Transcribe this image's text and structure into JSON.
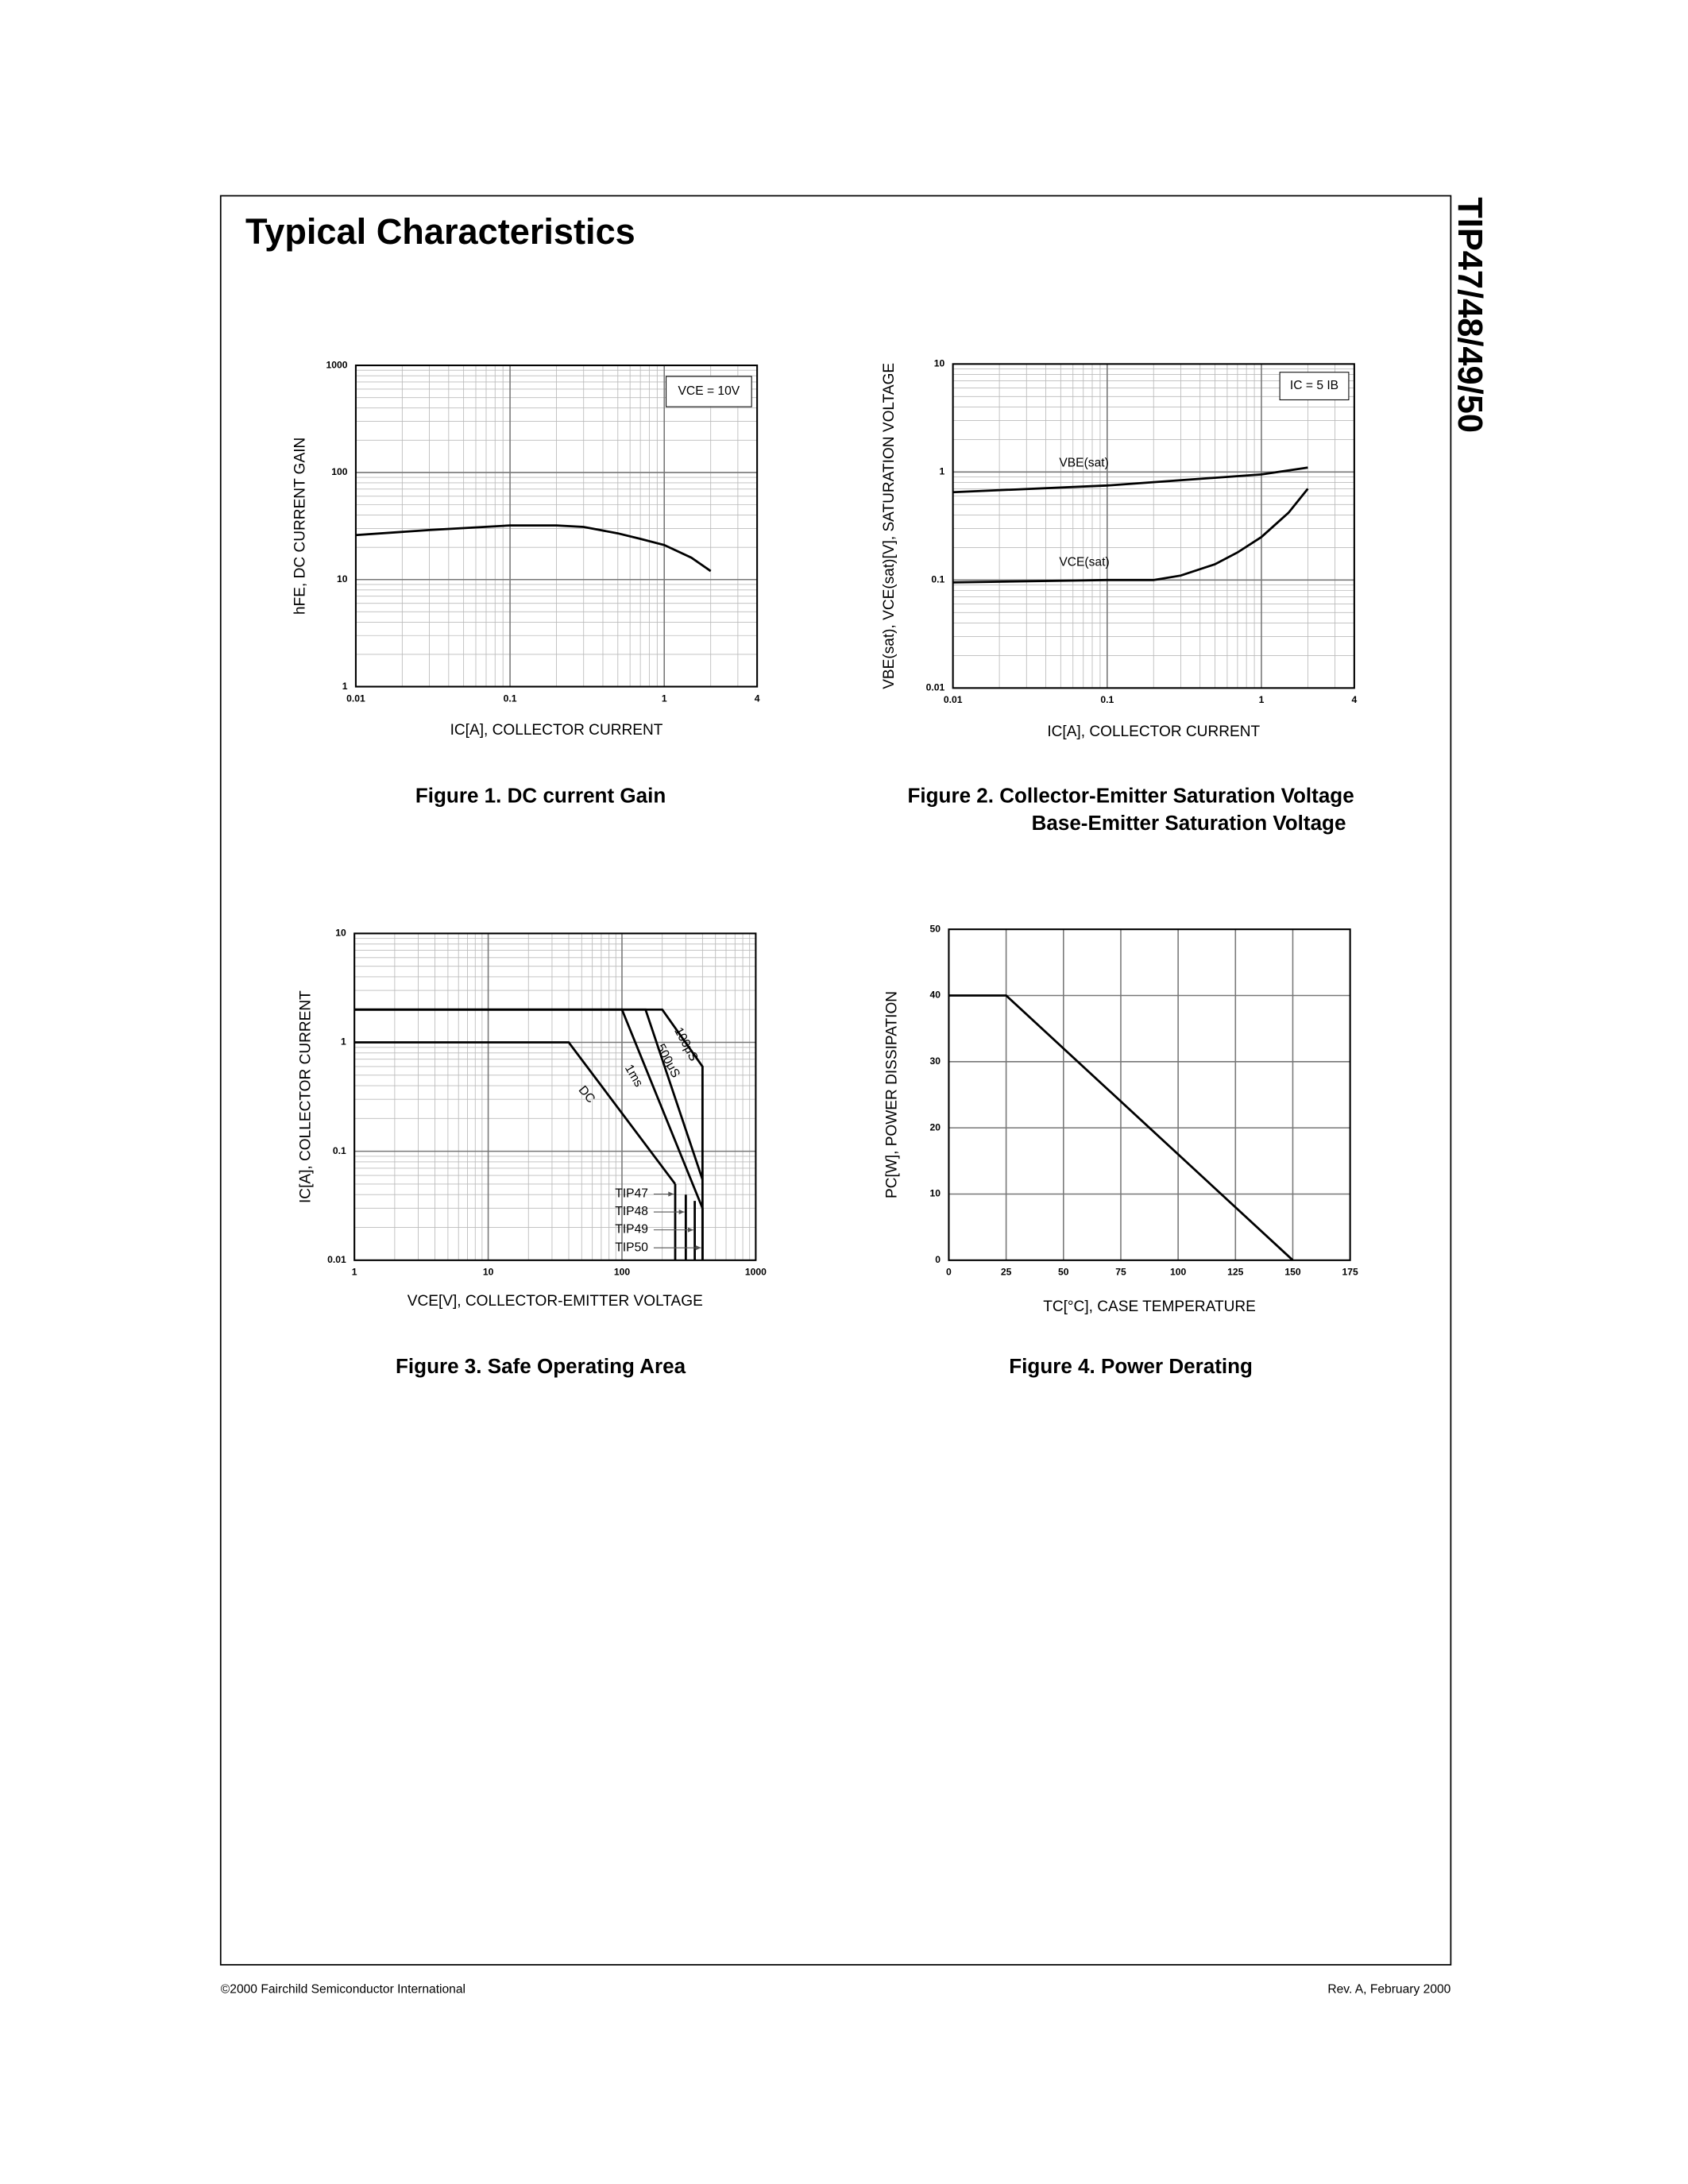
{
  "header": {
    "title": "Typical Characteristics",
    "side_title": "TIP47/48/49/50"
  },
  "footer": {
    "left": "©2000 Fairchild Semiconductor International",
    "right": "Rev. A, February 2000"
  },
  "chart_data": [
    {
      "type": "line",
      "caption": [
        "Figure 1. DC current Gain"
      ],
      "xlabel": "IC[A], COLLECTOR CURRENT",
      "ylabel": "hFE, DC CURRENT GAIN",
      "annotation": "VCE = 10V",
      "xscale": "log",
      "yscale": "log",
      "grid": true,
      "xlim": [
        0.01,
        4
      ],
      "xticks": [
        0.01,
        0.1,
        1,
        4
      ],
      "ylim": [
        1,
        1000
      ],
      "yticks": [
        1,
        10,
        100,
        1000
      ],
      "series": [
        {
          "color": "#000000",
          "x": [
            0.01,
            0.03,
            0.1,
            0.2,
            0.3,
            0.5,
            0.7,
            1,
            1.5,
            2
          ],
          "values": [
            26,
            29,
            32,
            32,
            31,
            27,
            24,
            21,
            16,
            12
          ]
        }
      ]
    },
    {
      "type": "line",
      "caption": [
        "Figure 2. Collector-Emitter Saturation Voltage",
        "Base-Emitter Saturation Voltage"
      ],
      "xlabel": "IC[A], COLLECTOR CURRENT",
      "ylabel": "VBE(sat), VCE(sat)[V], SATURATION VOLTAGE",
      "annotation": "IC = 5 IB",
      "xscale": "log",
      "yscale": "log",
      "grid": true,
      "xlim": [
        0.01,
        4
      ],
      "xticks": [
        0.01,
        0.1,
        1,
        4
      ],
      "ylim": [
        0.01,
        10
      ],
      "yticks": [
        0.01,
        0.1,
        1,
        10
      ],
      "series": [
        {
          "name": "VBE(sat)",
          "color": "#000000",
          "x": [
            0.01,
            0.1,
            1,
            2
          ],
          "values": [
            0.65,
            0.75,
            0.95,
            1.1
          ]
        },
        {
          "name": "VCE(sat)",
          "color": "#000000",
          "x": [
            0.01,
            0.1,
            0.2,
            0.3,
            0.5,
            0.7,
            1,
            1.5,
            2
          ],
          "values": [
            0.095,
            0.1,
            0.1,
            0.11,
            0.14,
            0.18,
            0.25,
            0.42,
            0.7
          ]
        }
      ]
    },
    {
      "type": "line",
      "caption": [
        "Figure 3. Safe Operating Area"
      ],
      "xlabel": "VCE[V], COLLECTOR-EMITTER VOLTAGE",
      "ylabel": "IC[A], COLLECTOR CURRENT",
      "xscale": "log",
      "yscale": "log",
      "grid": true,
      "xlim": [
        1,
        1000
      ],
      "xticks": [
        1,
        10,
        100,
        1000
      ],
      "ylim": [
        0.01,
        10
      ],
      "yticks": [
        0.01,
        0.1,
        1,
        10
      ],
      "series": [
        {
          "name": "100μS",
          "color": "#000000",
          "x": [
            1,
            200,
            400,
            400
          ],
          "values": [
            2,
            2,
            0.6,
            0.01
          ]
        },
        {
          "name": "500μS",
          "color": "#000000",
          "x": [
            1,
            150,
            400
          ],
          "values": [
            2,
            2,
            0.055
          ]
        },
        {
          "name": "1ms",
          "color": "#000000",
          "x": [
            1,
            100,
            400
          ],
          "values": [
            2,
            2,
            0.03
          ]
        },
        {
          "name": "DC",
          "color": "#000000",
          "x": [
            1,
            40,
            250
          ],
          "values": [
            1,
            1,
            0.05
          ]
        },
        {
          "name": "TIP47",
          "color": "#000000",
          "x": [
            250,
            250
          ],
          "values": [
            0.05,
            0.01
          ]
        },
        {
          "name": "TIP48",
          "color": "#000000",
          "x": [
            300,
            300
          ],
          "values": [
            0.04,
            0.01
          ]
        },
        {
          "name": "TIP49",
          "color": "#000000",
          "x": [
            350,
            350
          ],
          "values": [
            0.035,
            0.01
          ]
        },
        {
          "name": "TIP50",
          "color": "#000000",
          "x": [
            400,
            400
          ],
          "values": [
            0.03,
            0.01
          ]
        }
      ]
    },
    {
      "type": "line",
      "caption": [
        "Figure 4. Power Derating"
      ],
      "xlabel": "TC[°C], CASE TEMPERATURE",
      "ylabel": "PC[W], POWER DISSIPATION",
      "xscale": "linear",
      "yscale": "linear",
      "grid": true,
      "xlim": [
        0,
        175
      ],
      "xticks": [
        0,
        25,
        50,
        75,
        100,
        125,
        150,
        175
      ],
      "ylim": [
        0,
        50
      ],
      "yticks": [
        0,
        10,
        20,
        30,
        40,
        50
      ],
      "series": [
        {
          "color": "#000000",
          "x": [
            0,
            25,
            150
          ],
          "values": [
            40,
            40,
            0
          ]
        }
      ]
    }
  ]
}
